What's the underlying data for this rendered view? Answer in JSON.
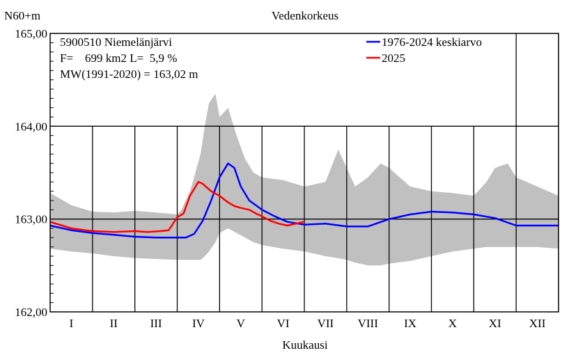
{
  "chart_data": {
    "type": "line",
    "title": "Vedenkorkeus",
    "ylabel": "N60+m",
    "xlabel": "Kuukausi",
    "ylim": [
      162.0,
      165.0
    ],
    "yticks": [
      "165,00",
      "164,00",
      "163,00",
      "162,00"
    ],
    "ytick_values": [
      165.0,
      164.0,
      163.0,
      162.0
    ],
    "categories": [
      "I",
      "II",
      "III",
      "IV",
      "V",
      "VI",
      "VII",
      "VIII",
      "IX",
      "X",
      "XI",
      "XII"
    ],
    "grid": "major",
    "info_lines": [
      "5900510 Niemelänjärvi",
      "F=    699 km2 L=  5,9 %",
      "MW(1991-2020) = 163,02 m"
    ],
    "legend_position": "top-right",
    "series": [
      {
        "name": "1976-2024 keskiarvo",
        "color": "#0000ff",
        "x": [
          0,
          0.5,
          1,
          1.5,
          2,
          2.5,
          3,
          3.2,
          3.4,
          3.6,
          3.8,
          4.0,
          4.2,
          4.35,
          4.5,
          4.7,
          5.0,
          5.3,
          5.6,
          6.0,
          6.5,
          7.0,
          7.5,
          8.0,
          8.5,
          9.0,
          9.5,
          10.0,
          10.5,
          11.0,
          11.5,
          12.0
        ],
        "values": [
          162.93,
          162.88,
          162.85,
          162.83,
          162.81,
          162.8,
          162.8,
          162.8,
          162.84,
          162.98,
          163.2,
          163.45,
          163.6,
          163.55,
          163.35,
          163.2,
          163.1,
          163.03,
          162.97,
          162.94,
          162.95,
          162.92,
          162.92,
          163.0,
          163.05,
          163.08,
          163.07,
          163.05,
          163.01,
          162.93,
          162.93,
          162.93
        ]
      },
      {
        "name": "2025",
        "color": "#ff0000",
        "x": [
          0,
          0.5,
          1,
          1.5,
          2,
          2.3,
          2.6,
          2.8,
          3.0,
          3.15,
          3.3,
          3.5,
          3.6,
          3.8,
          4.0,
          4.2,
          4.35,
          4.5,
          4.7,
          4.9,
          5.0,
          5.2,
          5.4,
          5.6,
          5.8,
          5.9,
          6.0
        ],
        "values": [
          162.97,
          162.9,
          162.87,
          162.86,
          162.87,
          162.86,
          162.87,
          162.88,
          163.02,
          163.06,
          163.25,
          163.4,
          163.38,
          163.3,
          163.25,
          163.18,
          163.14,
          163.12,
          163.1,
          163.05,
          163.03,
          162.98,
          162.95,
          162.93,
          162.95,
          162.96,
          162.97
        ]
      }
    ],
    "band": {
      "color": "#c0c0c0",
      "x": [
        0,
        0.5,
        1,
        1.5,
        2,
        2.5,
        3,
        3.1,
        3.3,
        3.4,
        3.55,
        3.65,
        3.75,
        3.9,
        4.0,
        4.2,
        4.4,
        4.6,
        4.8,
        5.0,
        5.5,
        6.0,
        6.5,
        6.8,
        7.0,
        7.2,
        7.5,
        7.8,
        8.0,
        8.5,
        9.0,
        9.5,
        10.0,
        10.3,
        10.5,
        10.8,
        11.0,
        11.5,
        12.0
      ],
      "lower": [
        162.68,
        162.65,
        162.63,
        162.6,
        162.58,
        162.57,
        162.56,
        162.56,
        162.56,
        162.56,
        162.56,
        162.6,
        162.65,
        162.75,
        162.85,
        162.9,
        162.85,
        162.8,
        162.75,
        162.72,
        162.68,
        162.65,
        162.6,
        162.58,
        162.56,
        162.53,
        162.5,
        162.5,
        162.52,
        162.55,
        162.6,
        162.65,
        162.68,
        162.7,
        162.7,
        162.7,
        162.7,
        162.7,
        162.68
      ],
      "upper": [
        163.28,
        163.15,
        163.08,
        163.07,
        163.09,
        163.07,
        163.05,
        163.1,
        163.3,
        163.45,
        163.7,
        164.0,
        164.25,
        164.35,
        164.1,
        164.2,
        163.9,
        163.65,
        163.5,
        163.45,
        163.42,
        163.35,
        163.4,
        163.75,
        163.55,
        163.35,
        163.45,
        163.6,
        163.55,
        163.35,
        163.3,
        163.28,
        163.25,
        163.4,
        163.55,
        163.6,
        163.45,
        163.35,
        163.25
      ]
    }
  }
}
